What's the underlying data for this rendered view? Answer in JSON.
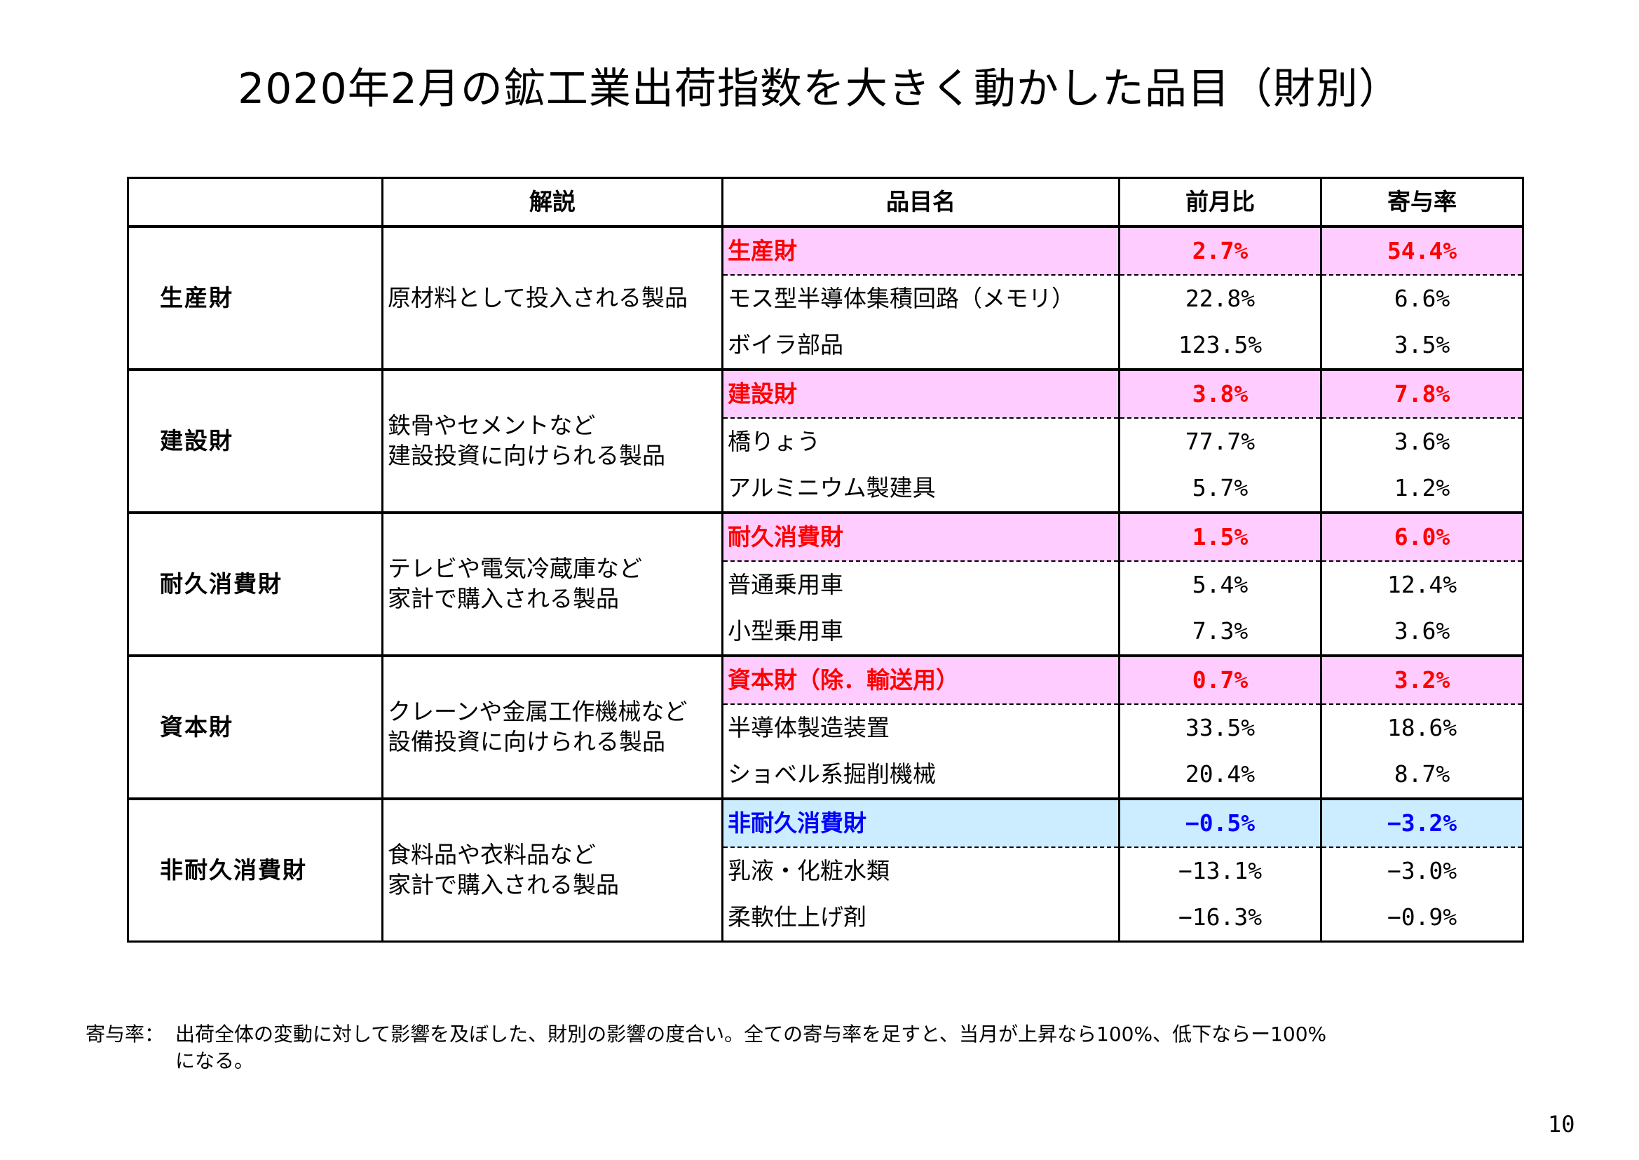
{
  "title": "2020年2月の鉱工業出荷指数を大きく動かした品目（財別）",
  "table": {
    "headers": [
      "",
      "解説",
      "品目名",
      "前月比",
      "寄与率"
    ],
    "groups": [
      {
        "category": "生産財",
        "description": [
          "原材料として投入される製品"
        ],
        "summary": {
          "name": "生産財",
          "mom": "2.7%",
          "contribution": "54.4%",
          "color": "#ff0000",
          "bg": "#ffccff"
        },
        "items": [
          {
            "name": "モス型半導体集積回路（メモリ）",
            "mom": "22.8%",
            "contribution": "6.6%"
          },
          {
            "name": "ボイラ部品",
            "mom": "123.5%",
            "contribution": "3.5%"
          }
        ]
      },
      {
        "category": "建設財",
        "description": [
          "鉄骨やセメントなど",
          "建設投資に向けられる製品"
        ],
        "summary": {
          "name": "建設財",
          "mom": "3.8%",
          "contribution": "7.8%",
          "color": "#ff0000",
          "bg": "#ffccff"
        },
        "items": [
          {
            "name": "橋りょう",
            "mom": "77.7%",
            "contribution": "3.6%"
          },
          {
            "name": "アルミニウム製建具",
            "mom": "5.7%",
            "contribution": "1.2%"
          }
        ]
      },
      {
        "category": "耐久消費財",
        "description": [
          "テレビや電気冷蔵庫など",
          "家計で購入される製品"
        ],
        "summary": {
          "name": "耐久消費財",
          "mom": "1.5%",
          "contribution": "6.0%",
          "color": "#ff0000",
          "bg": "#ffccff"
        },
        "items": [
          {
            "name": "普通乗用車",
            "mom": "5.4%",
            "contribution": "12.4%"
          },
          {
            "name": "小型乗用車",
            "mom": "7.3%",
            "contribution": "3.6%"
          }
        ]
      },
      {
        "category": "資本財",
        "description": [
          "クレーンや金属工作機械など",
          "設備投資に向けられる製品"
        ],
        "summary": {
          "name": "資本財（除．輸送用）",
          "mom": "0.7%",
          "contribution": "3.2%",
          "color": "#ff0000",
          "bg": "#ffccff"
        },
        "items": [
          {
            "name": "半導体製造装置",
            "mom": "33.5%",
            "contribution": "18.6%"
          },
          {
            "name": "ショベル系掘削機械",
            "mom": "20.4%",
            "contribution": "8.7%"
          }
        ]
      },
      {
        "category": "非耐久消費財",
        "description": [
          "食料品や衣料品など",
          "家計で購入される製品"
        ],
        "summary": {
          "name": "非耐久消費財",
          "mom": "−0.5%",
          "contribution": "−3.2%",
          "color": "#0000ff",
          "bg": "#ccecff"
        },
        "items": [
          {
            "name": "乳液・化粧水類",
            "mom": "−13.1%",
            "contribution": "−3.0%"
          },
          {
            "name": "柔軟仕上げ剤",
            "mom": "−16.3%",
            "contribution": "−0.9%"
          }
        ]
      }
    ]
  },
  "footnote": {
    "label": "寄与率：",
    "line1": "出荷全体の変動に対して影響を及ぼした、財別の影響の度合い。全ての寄与率を足すと、当月が上昇なら100%、低下ならー100%",
    "line2": "になる。"
  },
  "page_number": "10"
}
